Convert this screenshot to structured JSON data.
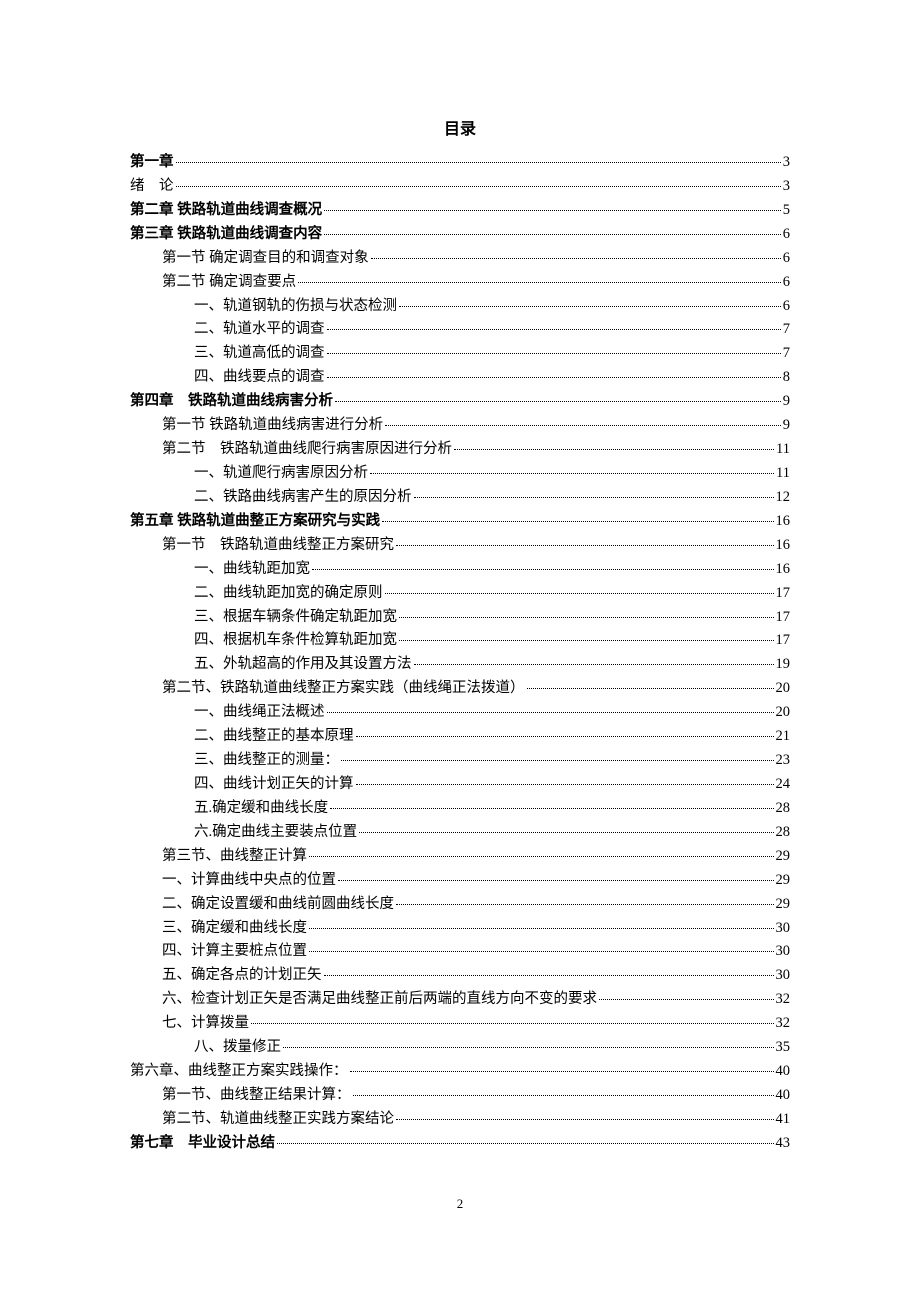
{
  "title": "目录",
  "page_number": "2",
  "entries": [
    {
      "label": "第一章",
      "page": "3",
      "indent": 0,
      "bold": true
    },
    {
      "label": "绪　论",
      "page": "3",
      "indent": 0,
      "bold": false
    },
    {
      "label": "第二章 铁路轨道曲线调查概况",
      "page": "5",
      "indent": 0,
      "bold": true
    },
    {
      "label": "第三章 铁路轨道曲线调查内容",
      "page": "6",
      "indent": 0,
      "bold": true
    },
    {
      "label": "第一节 确定调查目的和调查对象",
      "page": "6",
      "indent": 1,
      "bold": false
    },
    {
      "label": "第二节 确定调查要点",
      "page": "6",
      "indent": 1,
      "bold": false
    },
    {
      "label": "一、轨道钢轨的伤损与状态检测",
      "page": "6",
      "indent": 2,
      "bold": false
    },
    {
      "label": "二、轨道水平的调查",
      "page": "7",
      "indent": 2,
      "bold": false
    },
    {
      "label": "三、轨道高低的调查",
      "page": "7",
      "indent": 2,
      "bold": false
    },
    {
      "label": "四、曲线要点的调查",
      "page": "8",
      "indent": 2,
      "bold": false
    },
    {
      "label": "第四章　铁路轨道曲线病害分析",
      "page": "9",
      "indent": 0,
      "bold": true
    },
    {
      "label": "第一节 铁路轨道曲线病害进行分析",
      "page": "9",
      "indent": 1,
      "bold": false
    },
    {
      "label": "第二节　铁路轨道曲线爬行病害原因进行分析",
      "page": "11",
      "indent": 1,
      "bold": false
    },
    {
      "label": "一、轨道爬行病害原因分析",
      "page": "11",
      "indent": 2,
      "bold": false
    },
    {
      "label": "二、铁路曲线病害产生的原因分析",
      "page": "12",
      "indent": 2,
      "bold": false
    },
    {
      "label": "第五章 铁路轨道曲整正方案研究与实践",
      "page": "16",
      "indent": 0,
      "bold": true
    },
    {
      "label": "第一节　铁路轨道曲线整正方案研究",
      "page": "16",
      "indent": 1,
      "bold": false
    },
    {
      "label": "一、曲线轨距加宽",
      "page": "16",
      "indent": 2,
      "bold": false
    },
    {
      "label": "二、曲线轨距加宽的确定原则",
      "page": "17",
      "indent": 2,
      "bold": false
    },
    {
      "label": "三、根据车辆条件确定轨距加宽",
      "page": "17",
      "indent": 2,
      "bold": false
    },
    {
      "label": "四、根据机车条件检算轨距加宽",
      "page": "17",
      "indent": 2,
      "bold": false
    },
    {
      "label": "五、外轨超高的作用及其设置方法",
      "page": "19",
      "indent": 2,
      "bold": false
    },
    {
      "label": "第二节、铁路轨道曲线整正方案实践（曲线绳正法拨道）",
      "page": "20",
      "indent": 1,
      "bold": false
    },
    {
      "label": "一、曲线绳正法概述",
      "page": "20",
      "indent": 2,
      "bold": false
    },
    {
      "label": "二、曲线整正的基本原理",
      "page": "21",
      "indent": 2,
      "bold": false
    },
    {
      "label": "三、曲线整正的测量：",
      "page": "23",
      "indent": 2,
      "bold": false
    },
    {
      "label": "四、曲线计划正矢的计算",
      "page": "24",
      "indent": 2,
      "bold": false
    },
    {
      "label": "五.确定缓和曲线长度",
      "page": "28",
      "indent": 2,
      "bold": false
    },
    {
      "label": "六.确定曲线主要装点位置",
      "page": "28",
      "indent": 2,
      "bold": false
    },
    {
      "label": "第三节、曲线整正计算",
      "page": "29",
      "indent": 1,
      "bold": false
    },
    {
      "label": "一、计算曲线中央点的位置",
      "page": "29",
      "indent": 1,
      "bold": false
    },
    {
      "label": "二、确定设置缓和曲线前圆曲线长度",
      "page": "29",
      "indent": 1,
      "bold": false
    },
    {
      "label": "三、确定缓和曲线长度",
      "page": "30",
      "indent": 1,
      "bold": false
    },
    {
      "label": "四、计算主要桩点位置",
      "page": "30",
      "indent": 1,
      "bold": false
    },
    {
      "label": "五、确定各点的计划正矢",
      "page": "30",
      "indent": 1,
      "bold": false
    },
    {
      "label": "六、检查计划正矢是否满足曲线整正前后两端的直线方向不变的要求",
      "page": "32",
      "indent": 1,
      "bold": false
    },
    {
      "label": "七、计算拨量",
      "page": "32",
      "indent": 1,
      "bold": false
    },
    {
      "label": "八、拨量修正",
      "page": "35",
      "indent": 2,
      "bold": false
    },
    {
      "label": "第六章、曲线整正方案实践操作：",
      "page": "40",
      "indent": 0,
      "bold": false
    },
    {
      "label": "第一节、曲线整正结果计算：",
      "page": "40",
      "indent": 1,
      "bold": false
    },
    {
      "label": "第二节、轨道曲线整正实践方案结论",
      "page": "41",
      "indent": 1,
      "bold": false
    },
    {
      "label": "第七章　毕业设计总结",
      "page": "43",
      "indent": 0,
      "bold": true
    }
  ]
}
